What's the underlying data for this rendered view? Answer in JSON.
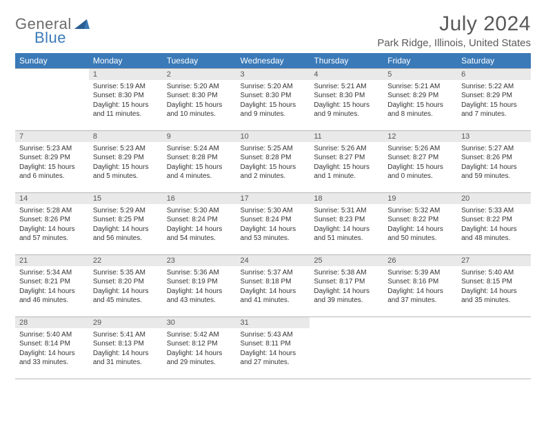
{
  "logo": {
    "word1": "General",
    "word2": "Blue"
  },
  "title": "July 2024",
  "location": "Park Ridge, Illinois, United States",
  "colors": {
    "header_bg": "#3a7ab8",
    "header_text": "#ffffff",
    "daynum_bg": "#e9e9e9",
    "border": "#b8b8b8",
    "title_text": "#595959",
    "body_text": "#333333",
    "logo_gray": "#6b6b6b",
    "logo_blue": "#3a7ab8"
  },
  "weekdays": [
    "Sunday",
    "Monday",
    "Tuesday",
    "Wednesday",
    "Thursday",
    "Friday",
    "Saturday"
  ],
  "weeks": [
    [
      null,
      {
        "n": "1",
        "sr": "5:19 AM",
        "ss": "8:30 PM",
        "dl": "15 hours and 11 minutes."
      },
      {
        "n": "2",
        "sr": "5:20 AM",
        "ss": "8:30 PM",
        "dl": "15 hours and 10 minutes."
      },
      {
        "n": "3",
        "sr": "5:20 AM",
        "ss": "8:30 PM",
        "dl": "15 hours and 9 minutes."
      },
      {
        "n": "4",
        "sr": "5:21 AM",
        "ss": "8:30 PM",
        "dl": "15 hours and 9 minutes."
      },
      {
        "n": "5",
        "sr": "5:21 AM",
        "ss": "8:29 PM",
        "dl": "15 hours and 8 minutes."
      },
      {
        "n": "6",
        "sr": "5:22 AM",
        "ss": "8:29 PM",
        "dl": "15 hours and 7 minutes."
      }
    ],
    [
      {
        "n": "7",
        "sr": "5:23 AM",
        "ss": "8:29 PM",
        "dl": "15 hours and 6 minutes."
      },
      {
        "n": "8",
        "sr": "5:23 AM",
        "ss": "8:29 PM",
        "dl": "15 hours and 5 minutes."
      },
      {
        "n": "9",
        "sr": "5:24 AM",
        "ss": "8:28 PM",
        "dl": "15 hours and 4 minutes."
      },
      {
        "n": "10",
        "sr": "5:25 AM",
        "ss": "8:28 PM",
        "dl": "15 hours and 2 minutes."
      },
      {
        "n": "11",
        "sr": "5:26 AM",
        "ss": "8:27 PM",
        "dl": "15 hours and 1 minute."
      },
      {
        "n": "12",
        "sr": "5:26 AM",
        "ss": "8:27 PM",
        "dl": "15 hours and 0 minutes."
      },
      {
        "n": "13",
        "sr": "5:27 AM",
        "ss": "8:26 PM",
        "dl": "14 hours and 59 minutes."
      }
    ],
    [
      {
        "n": "14",
        "sr": "5:28 AM",
        "ss": "8:26 PM",
        "dl": "14 hours and 57 minutes."
      },
      {
        "n": "15",
        "sr": "5:29 AM",
        "ss": "8:25 PM",
        "dl": "14 hours and 56 minutes."
      },
      {
        "n": "16",
        "sr": "5:30 AM",
        "ss": "8:24 PM",
        "dl": "14 hours and 54 minutes."
      },
      {
        "n": "17",
        "sr": "5:30 AM",
        "ss": "8:24 PM",
        "dl": "14 hours and 53 minutes."
      },
      {
        "n": "18",
        "sr": "5:31 AM",
        "ss": "8:23 PM",
        "dl": "14 hours and 51 minutes."
      },
      {
        "n": "19",
        "sr": "5:32 AM",
        "ss": "8:22 PM",
        "dl": "14 hours and 50 minutes."
      },
      {
        "n": "20",
        "sr": "5:33 AM",
        "ss": "8:22 PM",
        "dl": "14 hours and 48 minutes."
      }
    ],
    [
      {
        "n": "21",
        "sr": "5:34 AM",
        "ss": "8:21 PM",
        "dl": "14 hours and 46 minutes."
      },
      {
        "n": "22",
        "sr": "5:35 AM",
        "ss": "8:20 PM",
        "dl": "14 hours and 45 minutes."
      },
      {
        "n": "23",
        "sr": "5:36 AM",
        "ss": "8:19 PM",
        "dl": "14 hours and 43 minutes."
      },
      {
        "n": "24",
        "sr": "5:37 AM",
        "ss": "8:18 PM",
        "dl": "14 hours and 41 minutes."
      },
      {
        "n": "25",
        "sr": "5:38 AM",
        "ss": "8:17 PM",
        "dl": "14 hours and 39 minutes."
      },
      {
        "n": "26",
        "sr": "5:39 AM",
        "ss": "8:16 PM",
        "dl": "14 hours and 37 minutes."
      },
      {
        "n": "27",
        "sr": "5:40 AM",
        "ss": "8:15 PM",
        "dl": "14 hours and 35 minutes."
      }
    ],
    [
      {
        "n": "28",
        "sr": "5:40 AM",
        "ss": "8:14 PM",
        "dl": "14 hours and 33 minutes."
      },
      {
        "n": "29",
        "sr": "5:41 AM",
        "ss": "8:13 PM",
        "dl": "14 hours and 31 minutes."
      },
      {
        "n": "30",
        "sr": "5:42 AM",
        "ss": "8:12 PM",
        "dl": "14 hours and 29 minutes."
      },
      {
        "n": "31",
        "sr": "5:43 AM",
        "ss": "8:11 PM",
        "dl": "14 hours and 27 minutes."
      },
      null,
      null,
      null
    ]
  ],
  "labels": {
    "sunrise": "Sunrise:",
    "sunset": "Sunset:",
    "daylight": "Daylight:"
  }
}
